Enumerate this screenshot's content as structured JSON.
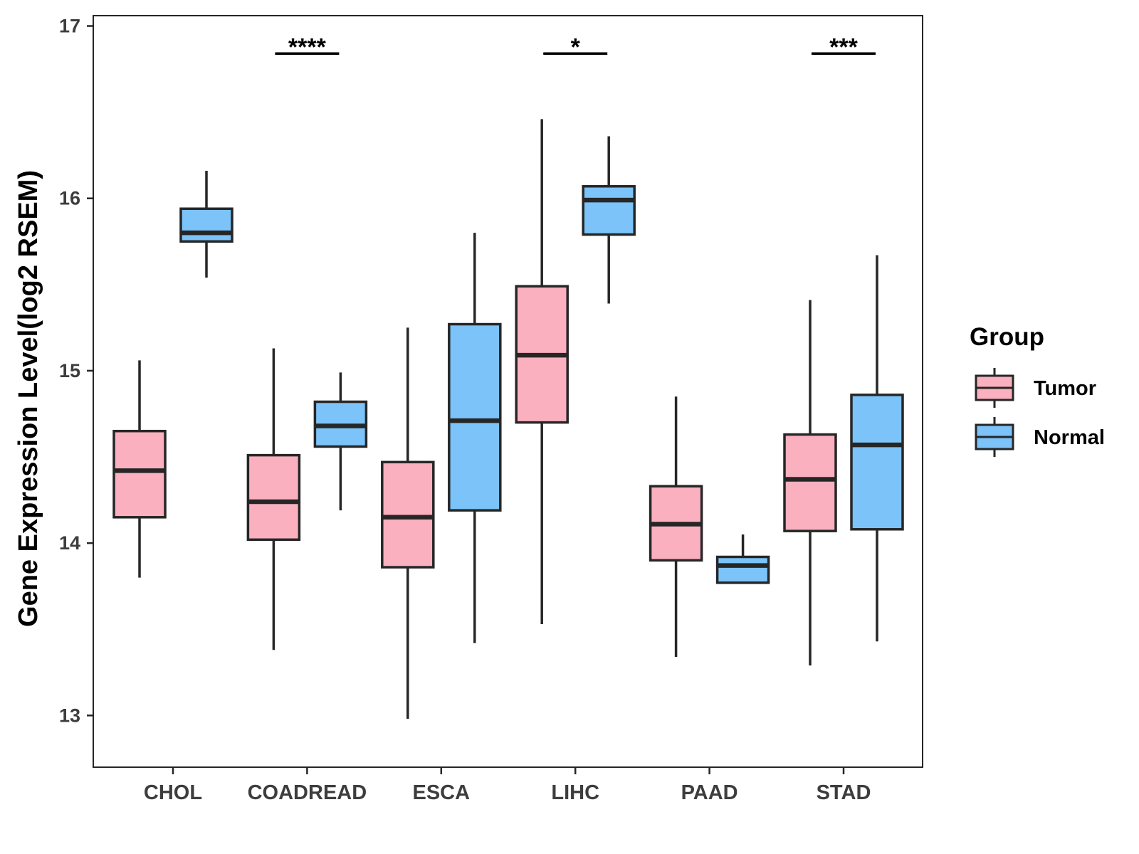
{
  "chart_data": {
    "type": "boxplot",
    "title": "",
    "xlabel": "",
    "ylabel": "Gene Expression Level(log2 RSEM)",
    "ylim": [
      12.7,
      17.06
    ],
    "yticks": [
      13,
      14,
      15,
      16,
      17
    ],
    "categories": [
      "CHOL",
      "COADREAD",
      "ESCA",
      "LIHC",
      "PAAD",
      "STAD"
    ],
    "legend": {
      "title": "Group",
      "position": "right"
    },
    "series": [
      {
        "name": "Tumor",
        "color": "#FBB0C0",
        "boxes": [
          {
            "min": 13.8,
            "q1": 14.15,
            "median": 14.42,
            "q3": 14.65,
            "max": 15.06
          },
          {
            "min": 13.38,
            "q1": 14.02,
            "median": 14.24,
            "q3": 14.51,
            "max": 15.13
          },
          {
            "min": 12.98,
            "q1": 13.86,
            "median": 14.15,
            "q3": 14.47,
            "max": 15.25
          },
          {
            "min": 13.53,
            "q1": 14.7,
            "median": 15.09,
            "q3": 15.49,
            "max": 16.46
          },
          {
            "min": 13.34,
            "q1": 13.9,
            "median": 14.11,
            "q3": 14.33,
            "max": 14.85
          },
          {
            "min": 13.29,
            "q1": 14.07,
            "median": 14.37,
            "q3": 14.63,
            "max": 15.41
          }
        ]
      },
      {
        "name": "Normal",
        "color": "#7BC3F8",
        "boxes": [
          {
            "min": 15.54,
            "q1": 15.75,
            "median": 15.8,
            "q3": 15.94,
            "max": 16.16
          },
          {
            "min": 14.19,
            "q1": 14.56,
            "median": 14.68,
            "q3": 14.82,
            "max": 14.99
          },
          {
            "min": 13.42,
            "q1": 14.19,
            "median": 14.71,
            "q3": 15.27,
            "max": 15.8
          },
          {
            "min": 15.39,
            "q1": 15.79,
            "median": 15.99,
            "q3": 16.07,
            "max": 16.36
          },
          {
            "min": 13.77,
            "q1": 13.77,
            "median": 13.87,
            "q3": 13.92,
            "max": 14.05
          },
          {
            "min": 13.43,
            "q1": 14.08,
            "median": 14.57,
            "q3": 14.86,
            "max": 15.67
          }
        ]
      }
    ],
    "significance": [
      {
        "category": "COADREAD",
        "label": "****",
        "y": 16.84
      },
      {
        "category": "LIHC",
        "label": "*",
        "y": 16.84
      },
      {
        "category": "STAD",
        "label": "***",
        "y": 16.84
      }
    ]
  }
}
